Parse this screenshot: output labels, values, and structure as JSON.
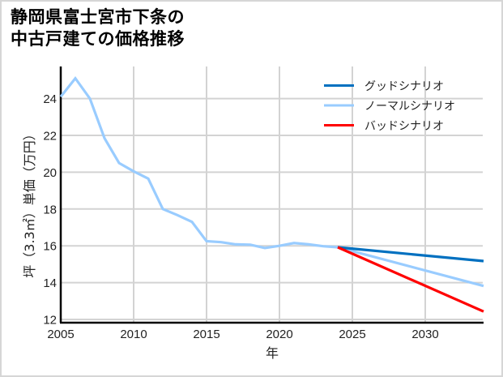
{
  "title": {
    "line1": "静岡県富士宮市下条の",
    "line2": "中古戸建ての価格推移"
  },
  "axes": {
    "xlabel": "年",
    "ylabel": "坪（3.3㎡）単価（万円）",
    "xticks": [
      "2005",
      "2010",
      "2015",
      "2020",
      "2025",
      "2030"
    ],
    "yticks": [
      "12",
      "14",
      "16",
      "18",
      "20",
      "22",
      "24"
    ]
  },
  "legend": {
    "good": "グッドシナリオ",
    "normal": "ノーマルシナリオ",
    "bad": "バッドシナリオ"
  },
  "colors": {
    "good": "#0070c0",
    "normal": "#99ccff",
    "bad": "#ff0000",
    "grid": "#d3d3d3",
    "axis": "#000000"
  },
  "chart_data": {
    "type": "line",
    "title": "静岡県富士宮市下条の中古戸建ての価格推移",
    "xlabel": "年",
    "ylabel": "坪（3.3㎡）単価（万円）",
    "xlim": [
      2005,
      2034
    ],
    "ylim": [
      12,
      26
    ],
    "grid": true,
    "legend_position": "upper right",
    "series": [
      {
        "name": "ノーマルシナリオ",
        "color": "#99ccff",
        "x": [
          2005,
          2006,
          2007,
          2008,
          2009,
          2010,
          2011,
          2012,
          2013,
          2014,
          2015,
          2016,
          2017,
          2018,
          2019,
          2020,
          2021,
          2022,
          2023,
          2024,
          2034
        ],
        "values": [
          24.1,
          25.1,
          24.0,
          21.85,
          20.5,
          20.05,
          19.65,
          18.0,
          17.67,
          17.3,
          16.25,
          16.2,
          16.08,
          16.06,
          15.88,
          16.0,
          16.15,
          16.08,
          15.98,
          15.92,
          13.82
        ]
      },
      {
        "name": "グッドシナリオ",
        "color": "#0070c0",
        "x": [
          2024,
          2034
        ],
        "values": [
          15.92,
          15.17
        ]
      },
      {
        "name": "バッドシナリオ",
        "color": "#ff0000",
        "x": [
          2024,
          2034
        ],
        "values": [
          15.92,
          12.43
        ]
      }
    ]
  }
}
